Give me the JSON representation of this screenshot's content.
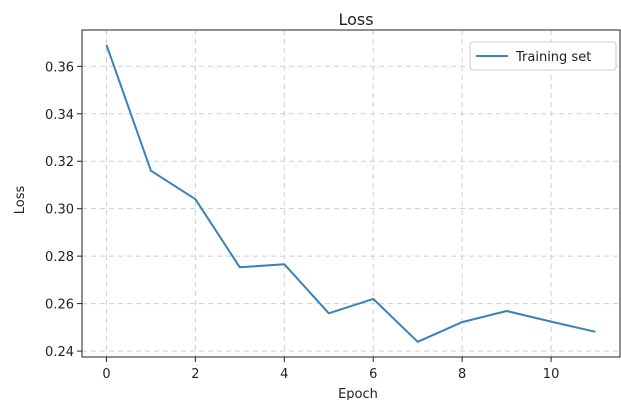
{
  "chart_data": {
    "type": "line",
    "title": "Loss",
    "xlabel": "Epoch",
    "ylabel": "Loss",
    "xlim": [
      -0.55,
      11.55
    ],
    "ylim": [
      0.2375,
      0.3753
    ],
    "xticks": [
      0,
      2,
      4,
      6,
      8,
      10
    ],
    "xtick_labels": [
      "0",
      "2",
      "4",
      "6",
      "8",
      "10"
    ],
    "yticks": [
      0.24,
      0.26,
      0.28,
      0.3,
      0.32,
      0.34,
      0.36
    ],
    "ytick_labels": [
      "0.24",
      "0.26",
      "0.28",
      "0.30",
      "0.32",
      "0.34",
      "0.36"
    ],
    "grid": true,
    "legend_position": "top-right",
    "series": [
      {
        "name": "Training set",
        "color": "#3b82b7",
        "x": [
          0,
          1,
          2,
          3,
          4,
          5,
          6,
          7,
          8,
          9,
          10,
          11
        ],
        "y": [
          0.369,
          0.316,
          0.304,
          0.2753,
          0.2766,
          0.2559,
          0.262,
          0.2439,
          0.2522,
          0.2569,
          0.2524,
          0.2481
        ]
      }
    ]
  }
}
